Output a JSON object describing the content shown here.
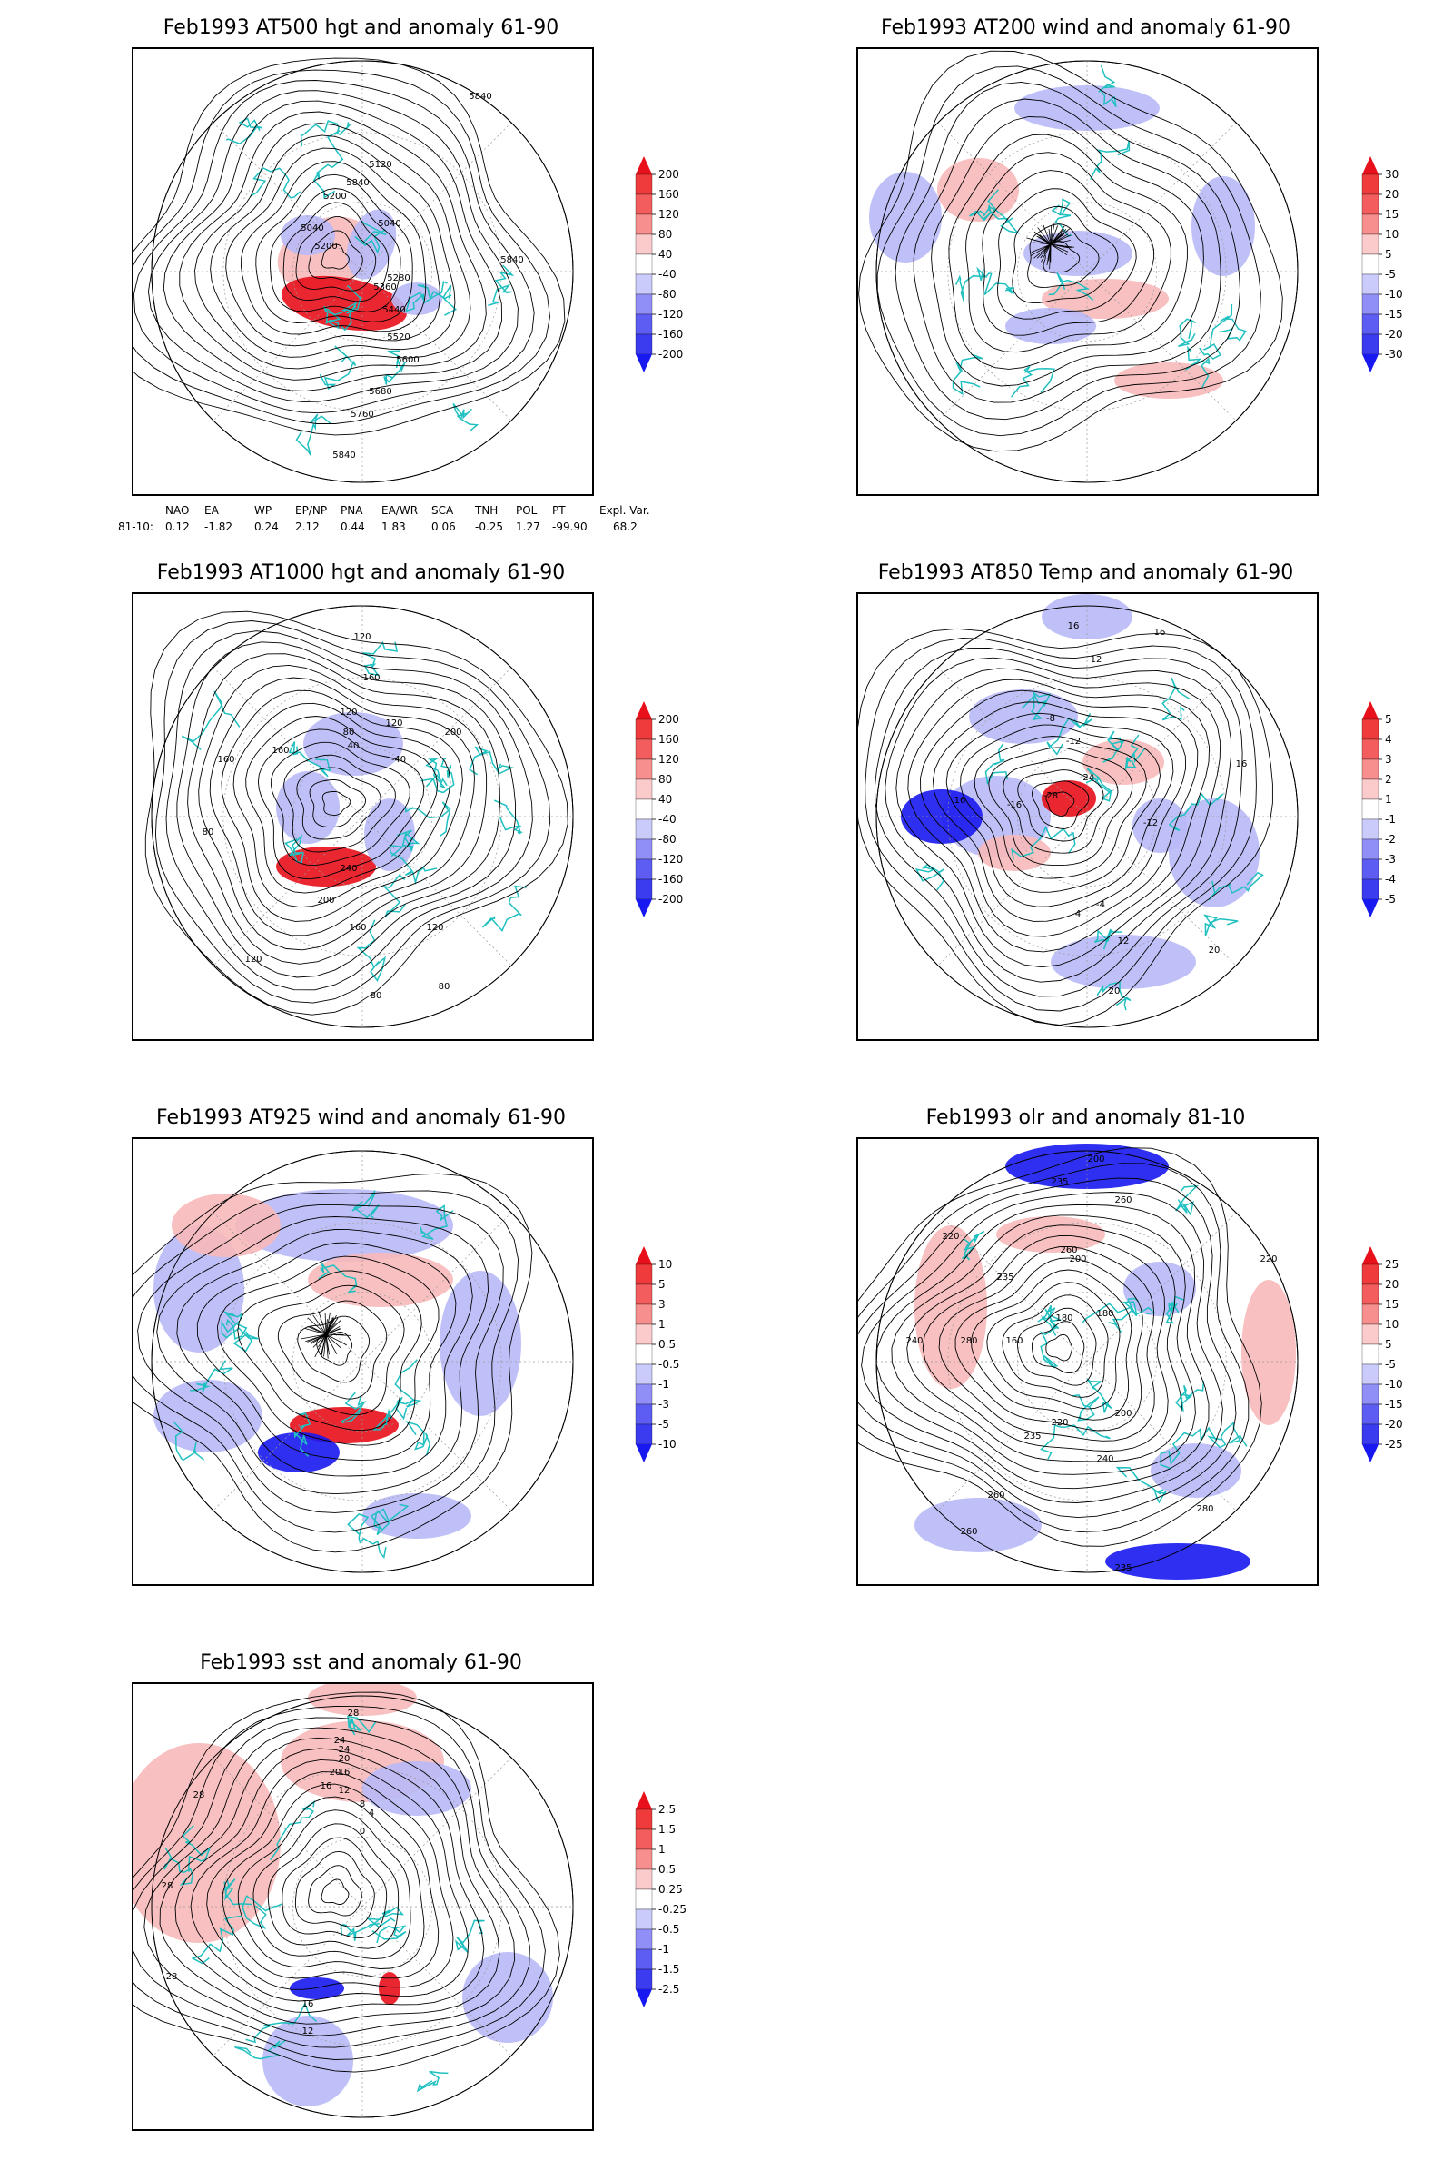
{
  "panels": [
    {
      "id": "z500",
      "title": "Feb1993 AT500 hgt and anomaly 61-90",
      "contour_labels": [
        "5840",
        "5840",
        "5840",
        "5120",
        "5200",
        "5040",
        "5040",
        "5200",
        "5360",
        "5440",
        "5520",
        "5600",
        "5680",
        "5760",
        "5840",
        "5280"
      ],
      "colorbar": [
        "200",
        "160",
        "120",
        "80",
        "40",
        "-40",
        "-80",
        "-120",
        "-160",
        "-200"
      ]
    },
    {
      "id": "u200",
      "title": "Feb1993 AT200 wind and anomaly 61-90",
      "contour_labels": [],
      "colorbar": [
        "30",
        "20",
        "15",
        "10",
        "5",
        "-5",
        "-10",
        "-15",
        "-20",
        "-30"
      ]
    },
    {
      "id": "z1000",
      "title": "Feb1993 AT1000 hgt and anomaly 61-90",
      "contour_labels": [
        "120",
        "160",
        "120",
        "80",
        "40",
        "-40",
        "120",
        "160",
        "160",
        "200",
        "80",
        "240",
        "200",
        "160",
        "120",
        "120",
        "80",
        "80"
      ],
      "colorbar": [
        "200",
        "160",
        "120",
        "80",
        "40",
        "-40",
        "-80",
        "-120",
        "-160",
        "-200"
      ]
    },
    {
      "id": "t850",
      "title": "Feb1993 AT850 Temp and anomaly 61-90",
      "contour_labels": [
        "16",
        "16",
        "12",
        "-8",
        "-12",
        "-24",
        "-28",
        "-16",
        "-12",
        "-4",
        "4",
        "12",
        "16",
        "16",
        "20",
        "20"
      ],
      "colorbar": [
        "5",
        "4",
        "3",
        "2",
        "1",
        "-1",
        "-2",
        "-3",
        "-4",
        "-5"
      ]
    },
    {
      "id": "w925",
      "title": "Feb1993 AT925 wind and anomaly 61-90",
      "contour_labels": [],
      "colorbar": [
        "10",
        "5",
        "3",
        "1",
        "0.5",
        "-0.5",
        "-1",
        "-3",
        "-5",
        "-10"
      ]
    },
    {
      "id": "olr",
      "title": "Feb1993 olr and anomaly 81-10",
      "contour_labels": [
        "200",
        "235",
        "260",
        "240",
        "220",
        "235",
        "260",
        "200",
        "180",
        "160",
        "180",
        "200",
        "220",
        "235",
        "240",
        "260",
        "280",
        "280",
        "260",
        "235",
        "220"
      ],
      "colorbar": [
        "25",
        "20",
        "15",
        "10",
        "5",
        "-5",
        "-10",
        "-15",
        "-20",
        "-25"
      ]
    },
    {
      "id": "sst",
      "title": "Feb1993 sst and anomaly 61-90",
      "contour_labels": [
        "28",
        "24",
        "20",
        "16",
        "12",
        "8",
        "4",
        "0",
        "28",
        "20",
        "16",
        "24",
        "28",
        "28",
        "16",
        "12"
      ],
      "colorbar": [
        "2.5",
        "1.5",
        "1",
        "0.5",
        "0.25",
        "-0.25",
        "-0.5",
        "-1",
        "-1.5",
        "-2.5"
      ]
    }
  ],
  "indices": {
    "headers": [
      "NAO",
      "EA",
      "WP",
      "EP/NP",
      "PNA",
      "EA/WR",
      "SCA",
      "TNH",
      "POL",
      "PT",
      "Expl. Var."
    ],
    "row_label": "81-10:",
    "values": [
      "0.12",
      "-1.82",
      "0.24",
      "2.12",
      "0.44",
      "1.83",
      "0.06",
      "-0.25",
      "1.27",
      "-99.90",
      "68.2"
    ]
  },
  "colors": {
    "coast": "#20c0c0",
    "contour": "#000000",
    "red_strong": "#e8101a",
    "red_light": "#f7b9b9",
    "blue_strong": "#1818f0",
    "blue_light": "#b9b9f7"
  }
}
